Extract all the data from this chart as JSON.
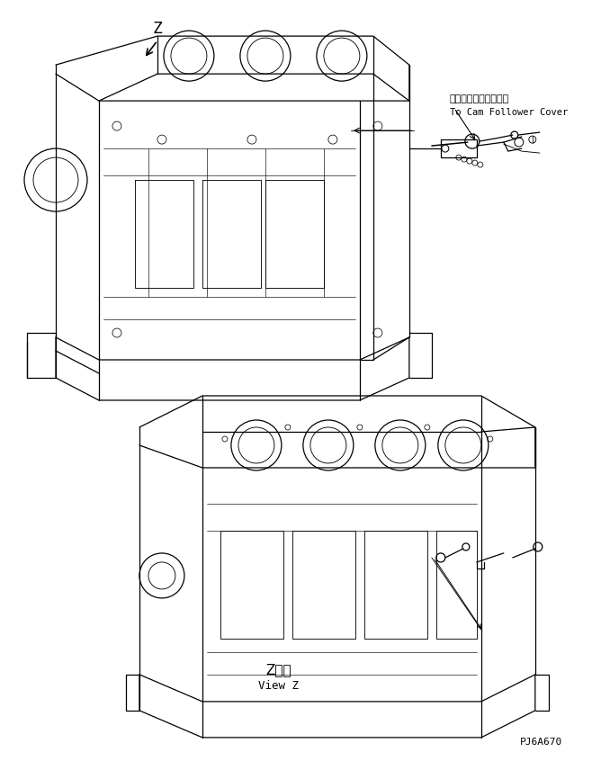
{
  "bg_color": "#ffffff",
  "line_color": "#000000",
  "line_width": 0.8,
  "title_code": "PJ6A670",
  "label_z": "Z",
  "label_view_z_jp": "Z　視",
  "label_view_z_en": "View Z",
  "label_cam_jp": "カムフォロワカバーヘ",
  "label_cam_en": "To Cam Follower Cover",
  "figsize": [
    6.68,
    8.46
  ],
  "dpi": 100
}
